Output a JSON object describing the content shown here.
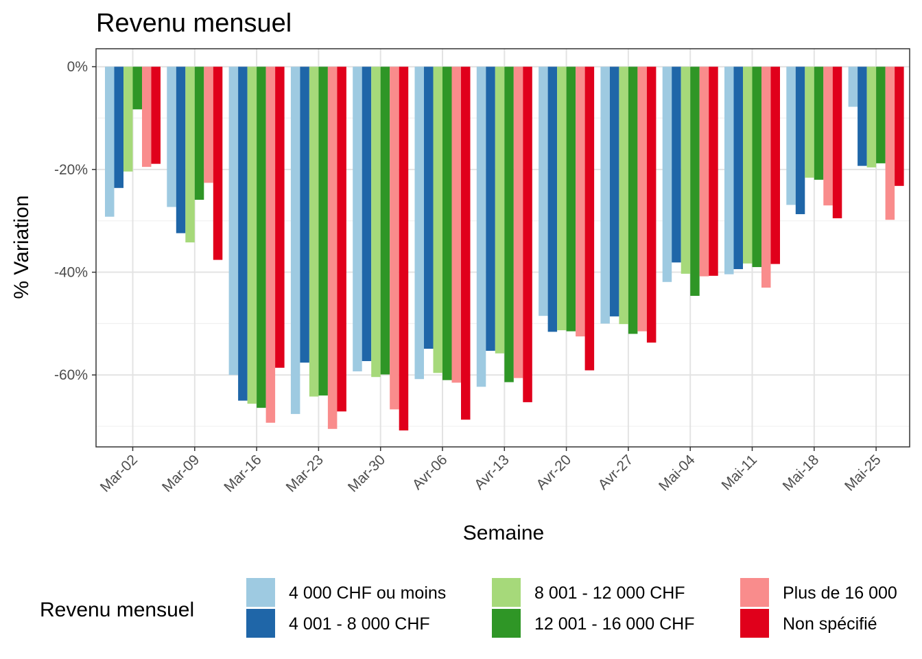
{
  "chart_data": {
    "type": "bar",
    "title": "Revenu mensuel",
    "xlabel": "Semaine",
    "ylabel": "% Variation",
    "ylim": [
      -74,
      3.5
    ],
    "yticks": [
      {
        "value": 0,
        "label": "0%"
      },
      {
        "value": -20,
        "label": "-20%"
      },
      {
        "value": -40,
        "label": "-40%"
      },
      {
        "value": -60,
        "label": "-60%"
      }
    ],
    "grid": true,
    "legend_title": "Revenu mensuel",
    "legend_position": "bottom",
    "categories": [
      "Mar-02",
      "Mar-09",
      "Mar-16",
      "Mar-23",
      "Mar-30",
      "Avr-06",
      "Avr-13",
      "Avr-20",
      "Avr-27",
      "Mai-04",
      "Mai-11",
      "Mai-18",
      "Mai-25"
    ],
    "series": [
      {
        "name": "4 000 CHF ou moins",
        "color": "#9ecae1",
        "values": [
          -29.2,
          -27.3,
          -60.0,
          -67.6,
          -59.3,
          -60.8,
          -62.3,
          -48.5,
          -50.0,
          -41.9,
          -40.4,
          -26.9,
          -7.8
        ]
      },
      {
        "name": "4 001 - 8 000 CHF",
        "color": "#1f66a8",
        "values": [
          -23.6,
          -32.4,
          -65.0,
          -57.6,
          -57.3,
          -54.9,
          -55.3,
          -51.6,
          -48.6,
          -38.1,
          -39.4,
          -28.7,
          -19.3
        ]
      },
      {
        "name": "8 001 - 12 000 CHF",
        "color": "#a6d97a",
        "values": [
          -20.4,
          -34.2,
          -65.6,
          -64.2,
          -60.4,
          -59.6,
          -55.8,
          -51.3,
          -50.1,
          -40.3,
          -38.3,
          -21.6,
          -19.6
        ]
      },
      {
        "name": "12 001 - 16 000 CHF",
        "color": "#2f9626",
        "values": [
          -8.3,
          -25.9,
          -66.4,
          -64.0,
          -59.9,
          -61.0,
          -61.4,
          -51.5,
          -52.0,
          -44.6,
          -39.0,
          -22.0,
          -18.8
        ]
      },
      {
        "name": "Plus de 16 000",
        "color": "#f98c8c",
        "values": [
          -19.5,
          -22.6,
          -69.3,
          -70.5,
          -66.7,
          -61.5,
          -60.6,
          -52.5,
          -51.5,
          -40.8,
          -43.0,
          -27.0,
          -29.8
        ]
      },
      {
        "name": "Non spécifié",
        "color": "#e0001b",
        "values": [
          -18.9,
          -37.6,
          -58.6,
          -67.1,
          -70.8,
          -68.7,
          -65.3,
          -59.1,
          -53.7,
          -40.7,
          -38.4,
          -29.5,
          -23.2
        ]
      }
    ]
  }
}
